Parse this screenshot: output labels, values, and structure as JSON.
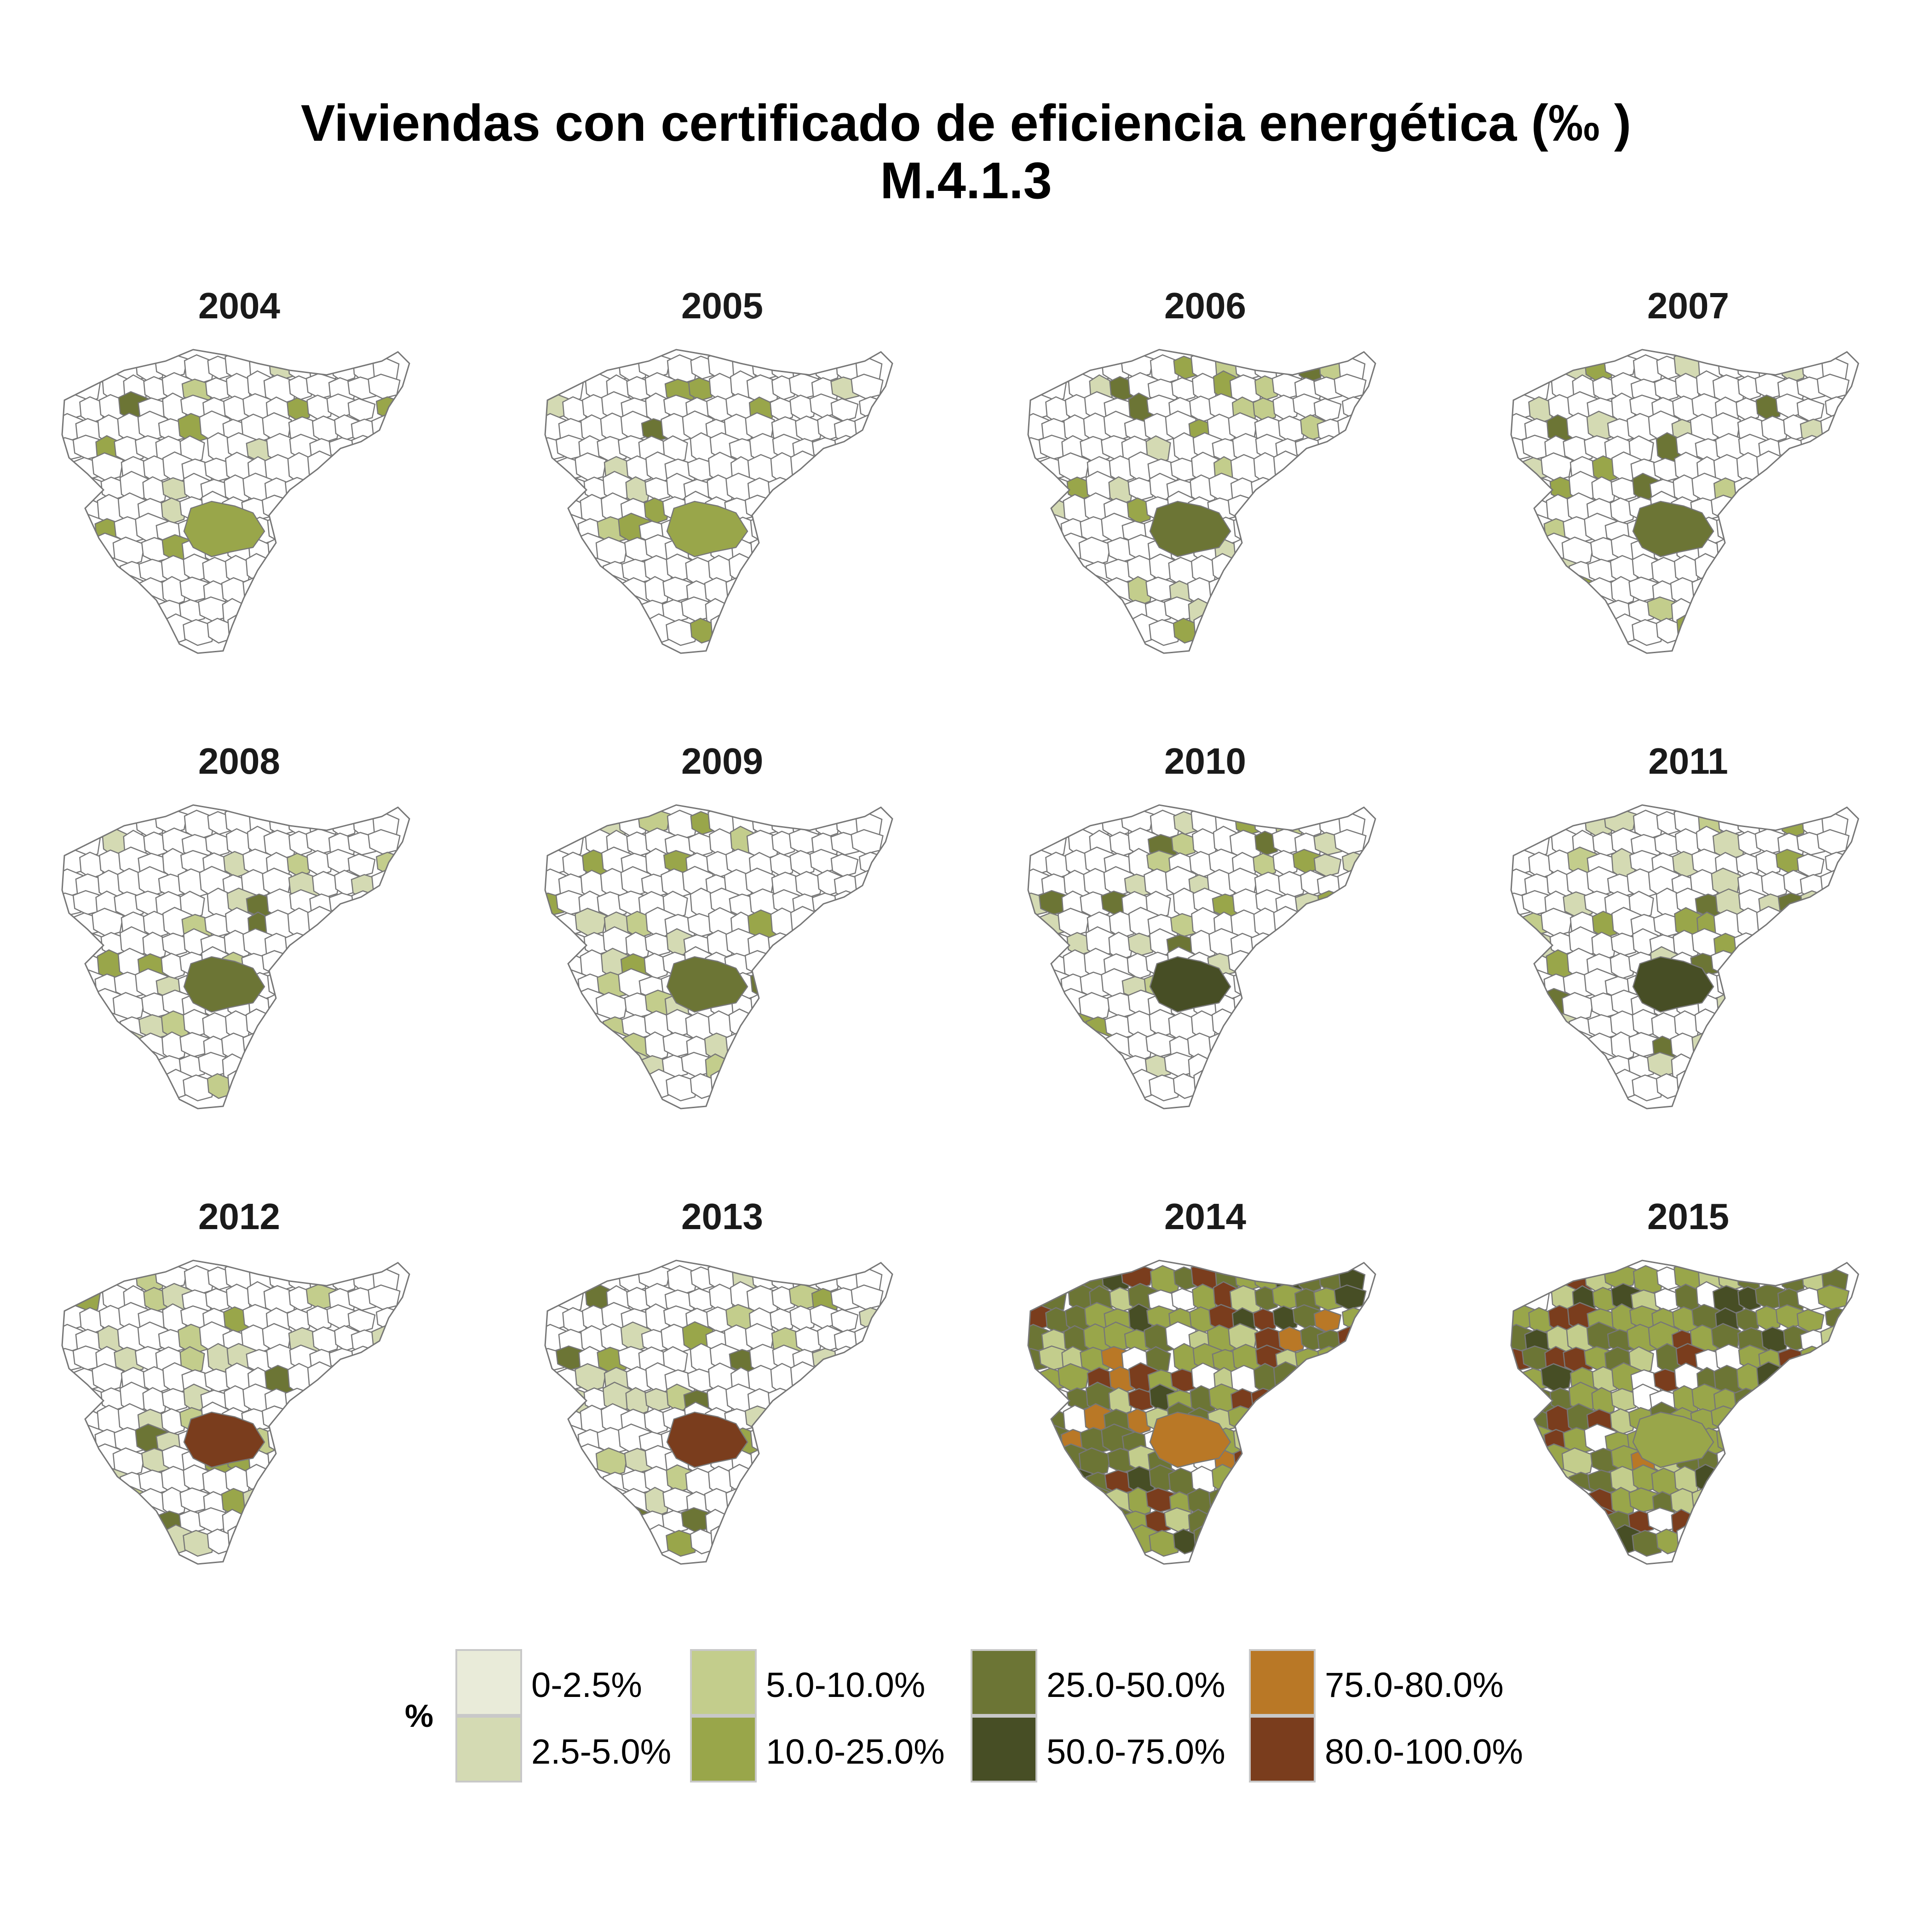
{
  "title": {
    "line1": "Viviendas con certificado de eficiencia energética  (‰ )",
    "line2": "M.4.1.3"
  },
  "map": {
    "region_outline_color": "#777777",
    "no_data_color": "#ffffff",
    "panels": [
      {
        "year": "2004",
        "intensity": "low"
      },
      {
        "year": "2005",
        "intensity": "low"
      },
      {
        "year": "2006",
        "intensity": "low"
      },
      {
        "year": "2007",
        "intensity": "low"
      },
      {
        "year": "2008",
        "intensity": "low"
      },
      {
        "year": "2009",
        "intensity": "low"
      },
      {
        "year": "2010",
        "intensity": "low"
      },
      {
        "year": "2011",
        "intensity": "low"
      },
      {
        "year": "2012",
        "intensity": "low"
      },
      {
        "year": "2013",
        "intensity": "low"
      },
      {
        "year": "2014",
        "intensity": "high"
      },
      {
        "year": "2015",
        "intensity": "high"
      }
    ]
  },
  "legend": {
    "title": "%",
    "items": [
      {
        "label": "0-2.5%",
        "color": "#e9ebd9"
      },
      {
        "label": "2.5-5.0%",
        "color": "#d4dab3"
      },
      {
        "label": "5.0-10.0%",
        "color": "#c3cd8c"
      },
      {
        "label": "10.0-25.0%",
        "color": "#99a64a"
      },
      {
        "label": "25.0-50.0%",
        "color": "#6c7535"
      },
      {
        "label": "50.0-75.0%",
        "color": "#474e25"
      },
      {
        "label": "75.0-80.0%",
        "color": "#b97826"
      },
      {
        "label": "80.0-100.0%",
        "color": "#7a3d1d"
      }
    ]
  }
}
